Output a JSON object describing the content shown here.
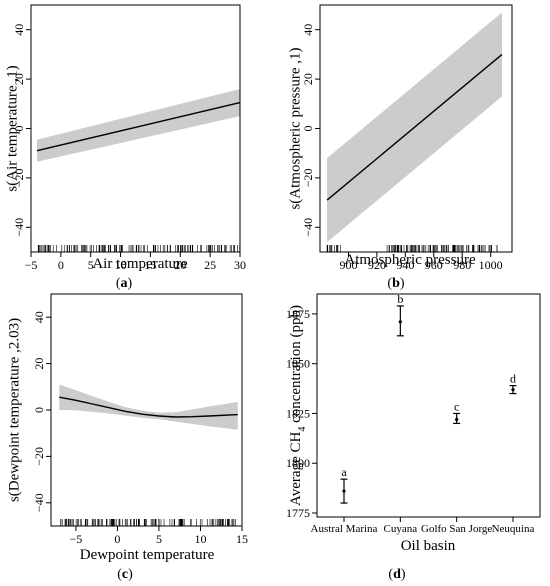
{
  "chart_data": [
    {
      "panel_label": "a",
      "type": "line",
      "ylabel": "s(Air temperature ,1)",
      "xlabel": "Air temperature",
      "xlim": [
        -5,
        30
      ],
      "ylim": [
        -50,
        50
      ],
      "xticks": [
        -5,
        0,
        5,
        10,
        15,
        20,
        25,
        30
      ],
      "yticks": [
        -40,
        -20,
        0,
        20,
        40
      ],
      "series": [
        {
          "x": [
            -4,
            30
          ],
          "y": [
            -9,
            10.5
          ],
          "upper": [
            -4.5,
            16
          ],
          "lower": [
            -13.5,
            5
          ]
        }
      ],
      "rug": "dense tick marks along x axis from -4 to 30"
    },
    {
      "panel_label": "b",
      "type": "line",
      "ylabel": "s(Atmospheric pressure ,1)",
      "xlabel": "Atmospheric pressure",
      "xlim": [
        880,
        1015
      ],
      "ylim": [
        -50,
        50
      ],
      "xticks": [
        900,
        920,
        940,
        960,
        980,
        1000
      ],
      "yticks": [
        -40,
        -20,
        0,
        20,
        40
      ],
      "series": [
        {
          "x": [
            885,
            1008
          ],
          "y": [
            -29,
            30
          ],
          "upper": [
            -12,
            47
          ],
          "lower": [
            -46,
            13
          ]
        }
      ],
      "rug": "tick marks 885-895 and 925-1005"
    },
    {
      "panel_label": "c",
      "type": "line",
      "ylabel": "s(Dewpoint temperature ,2.03)",
      "xlabel": "Dewpoint temperature",
      "xlim": [
        -8,
        15
      ],
      "ylim": [
        -50,
        50
      ],
      "xticks": [
        -5,
        0,
        5,
        10,
        15
      ],
      "yticks": [
        -40,
        -20,
        0,
        20,
        40
      ],
      "series": [
        {
          "x": [
            -7,
            -5,
            -3,
            -1,
            1,
            3,
            5,
            7,
            9,
            11,
            14.5
          ],
          "y": [
            5.5,
            4.2,
            2.6,
            1.0,
            -0.6,
            -1.8,
            -2.6,
            -3.0,
            -2.9,
            -2.6,
            -2.0
          ],
          "upper": [
            11,
            8.5,
            6,
            3.5,
            1.2,
            -0.3,
            -1.2,
            -1.0,
            0.2,
            1.5,
            3.5
          ],
          "lower": [
            0,
            -0.1,
            -0.8,
            -1.5,
            -2.4,
            -3.3,
            -4.0,
            -5.0,
            -6.0,
            -7.0,
            -8.5
          ]
        }
      ],
      "rug": "dense tick marks along x axis from -7 to 14.5"
    },
    {
      "panel_label": "d",
      "type": "scatter",
      "ylabel": "Average CH4 concentration (ppb)",
      "ylabel_parts": [
        "Average CH",
        "4",
        " concentration (ppb)"
      ],
      "xlabel": "Oil basin",
      "categories": [
        "Austral Marina",
        "Cuyana",
        "Golfo San Jorge",
        "Neuquina"
      ],
      "ylim": [
        1773,
        1885
      ],
      "yticks": [
        1775,
        1800,
        1825,
        1850,
        1875
      ],
      "values": [
        1786,
        1871,
        1822,
        1837
      ],
      "error_low": [
        1780,
        1864,
        1820,
        1835
      ],
      "error_high": [
        1792,
        1879,
        1825,
        1839
      ],
      "letters": [
        "a",
        "b",
        "c",
        "d"
      ]
    }
  ]
}
